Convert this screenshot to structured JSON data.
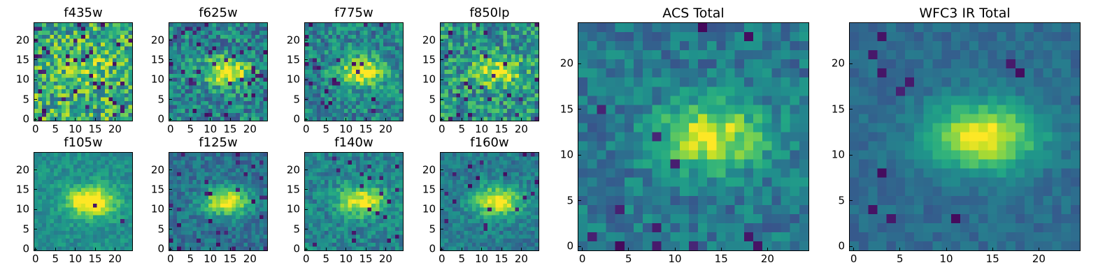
{
  "panels": [
    {
      "id": "f435w",
      "title": "f435w",
      "size": "small",
      "blob": 0.15,
      "noise": 0.6,
      "base": 0.62,
      "seed": 11,
      "dark": 0.06,
      "xticks": [
        "0",
        "5",
        "10",
        "15",
        "20"
      ],
      "yticks": [
        "0",
        "5",
        "10",
        "15",
        "20"
      ]
    },
    {
      "id": "f625w",
      "title": "f625w",
      "size": "small",
      "blob": 0.55,
      "noise": 0.45,
      "base": 0.45,
      "seed": 23,
      "dark": 0.05,
      "xticks": [
        "0",
        "5",
        "10",
        "15",
        "20"
      ],
      "yticks": [
        "0",
        "5",
        "10",
        "15",
        "20"
      ]
    },
    {
      "id": "f775w",
      "title": "f775w",
      "size": "small",
      "blob": 0.55,
      "noise": 0.4,
      "base": 0.45,
      "seed": 37,
      "dark": 0.04,
      "xticks": [
        "0",
        "5",
        "10",
        "15",
        "20"
      ],
      "yticks": [
        "0",
        "5",
        "10",
        "15",
        "20"
      ]
    },
    {
      "id": "f850lp",
      "title": "f850lp",
      "size": "small",
      "blob": 0.4,
      "noise": 0.5,
      "base": 0.52,
      "seed": 41,
      "dark": 0.06,
      "xticks": [
        "0",
        "5",
        "10",
        "15",
        "20"
      ],
      "yticks": [
        "0",
        "5",
        "10",
        "15",
        "20"
      ]
    },
    {
      "id": "f105w",
      "title": "f105w",
      "size": "small",
      "blob": 0.65,
      "noise": 0.22,
      "base": 0.5,
      "seed": 53,
      "dark": 0.01,
      "xticks": [
        "0",
        "5",
        "10",
        "15",
        "20"
      ],
      "yticks": [
        "0",
        "5",
        "10",
        "15",
        "20"
      ]
    },
    {
      "id": "f125w",
      "title": "f125w",
      "size": "small",
      "blob": 0.6,
      "noise": 0.25,
      "base": 0.38,
      "seed": 67,
      "dark": 0.04,
      "xticks": [
        "0",
        "5",
        "10",
        "15",
        "20"
      ],
      "yticks": [
        "0",
        "5",
        "10",
        "15",
        "20"
      ]
    },
    {
      "id": "f140w",
      "title": "f140w",
      "size": "small",
      "blob": 0.55,
      "noise": 0.3,
      "base": 0.45,
      "seed": 71,
      "dark": 0.03,
      "xticks": [
        "0",
        "5",
        "10",
        "15",
        "20"
      ],
      "yticks": [
        "0",
        "5",
        "10",
        "15",
        "20"
      ]
    },
    {
      "id": "f160w",
      "title": "f160w",
      "size": "small",
      "blob": 0.6,
      "noise": 0.25,
      "base": 0.42,
      "seed": 83,
      "dark": 0.03,
      "xticks": [
        "0",
        "5",
        "10",
        "15",
        "20"
      ],
      "yticks": [
        "0",
        "5",
        "10",
        "15",
        "20"
      ]
    },
    {
      "id": "acs-total",
      "title": "ACS Total",
      "size": "large",
      "blob": 0.55,
      "noise": 0.28,
      "base": 0.4,
      "seed": 97,
      "dark": 0.03,
      "xticks": [
        "0",
        "5",
        "10",
        "15",
        "20"
      ],
      "yticks": [
        "0",
        "5",
        "10",
        "15",
        "20"
      ]
    },
    {
      "id": "wfc3-ir-total",
      "title": "WFC3 IR Total",
      "size": "large",
      "blob": 0.65,
      "noise": 0.14,
      "base": 0.35,
      "seed": 109,
      "dark": 0.02,
      "xticks": [
        "0",
        "5",
        "10",
        "15",
        "20"
      ],
      "yticks": [
        "0",
        "5",
        "10",
        "15",
        "20"
      ]
    }
  ],
  "colormap": "viridis"
}
